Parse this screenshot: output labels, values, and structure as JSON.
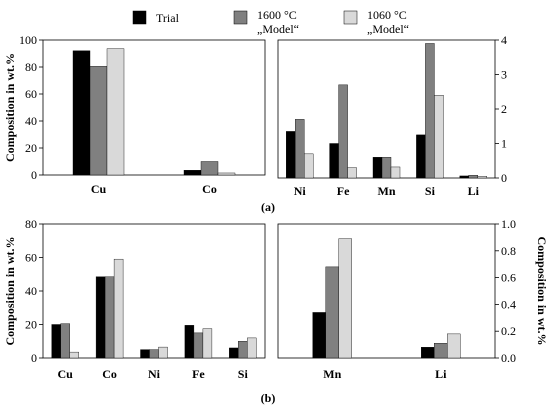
{
  "legend": {
    "items": [
      {
        "label_lines": [
          "Trial"
        ],
        "color": "#000000"
      },
      {
        "label_lines": [
          "1600 °C",
          "„Model“"
        ],
        "color": "#808080"
      },
      {
        "label_lines": [
          "1060 °C",
          "„Model“"
        ],
        "color": "#d9d9d9"
      }
    ]
  },
  "captions": {
    "a": "(a)",
    "b": "(b)"
  },
  "chart_data": [
    {
      "id": "a-left",
      "type": "bar",
      "categories": [
        "Cu",
        "Co"
      ],
      "series": [
        {
          "name": "Trial",
          "values": [
            92,
            3.5
          ]
        },
        {
          "name": "1600 °C „Model“",
          "values": [
            80.5,
            10
          ]
        },
        {
          "name": "1060 °C „Model“",
          "values": [
            93.5,
            1.5
          ]
        }
      ],
      "ylabel": "Composition in wt.%",
      "ylim": [
        0,
        100
      ],
      "yticks": [
        0,
        20,
        40,
        60,
        80,
        100
      ],
      "grid": false
    },
    {
      "id": "a-right",
      "type": "bar",
      "categories": [
        "Ni",
        "Fe",
        "Mn",
        "Si",
        "Li"
      ],
      "series": [
        {
          "name": "Trial",
          "values": [
            1.35,
            1.0,
            0.6,
            1.25,
            0.06
          ]
        },
        {
          "name": "1600 °C „Model“",
          "values": [
            1.7,
            2.7,
            0.6,
            3.9,
            0.08
          ]
        },
        {
          "name": "1060 °C „Model“",
          "values": [
            0.7,
            0.3,
            0.32,
            2.4,
            0.05
          ]
        }
      ],
      "ylim": [
        0,
        4
      ],
      "yticks": [
        0,
        1,
        2,
        3,
        4
      ],
      "yaxis_side": "right",
      "grid": false
    },
    {
      "id": "b-left",
      "type": "bar",
      "categories": [
        "Cu",
        "Co",
        "Ni",
        "Fe",
        "Si"
      ],
      "series": [
        {
          "name": "Trial",
          "values": [
            20,
            48.5,
            5,
            19.5,
            6
          ]
        },
        {
          "name": "1600 °C „Model“",
          "values": [
            20.5,
            48.5,
            5,
            15,
            10
          ]
        },
        {
          "name": "1060 °C „Model“",
          "values": [
            3.5,
            59,
            6.5,
            17.5,
            12
          ]
        }
      ],
      "ylabel": "Composition in wt.%",
      "ylim": [
        0,
        80
      ],
      "yticks": [
        0,
        20,
        40,
        60,
        80
      ],
      "grid": false
    },
    {
      "id": "b-right",
      "type": "bar",
      "categories": [
        "Mn",
        "Li"
      ],
      "series": [
        {
          "name": "Trial",
          "values": [
            0.34,
            0.08
          ]
        },
        {
          "name": "1600 °C „Model“",
          "values": [
            0.68,
            0.11
          ]
        },
        {
          "name": "1060 °C „Model“",
          "values": [
            0.89,
            0.18
          ]
        }
      ],
      "ylabel": "Composition in wt.%",
      "ylim": [
        0,
        1.0
      ],
      "yticks": [
        "0.0",
        "0.2",
        "0.4",
        "0.6",
        "0.8",
        "1.0"
      ],
      "yaxis_side": "right",
      "grid": false
    }
  ]
}
